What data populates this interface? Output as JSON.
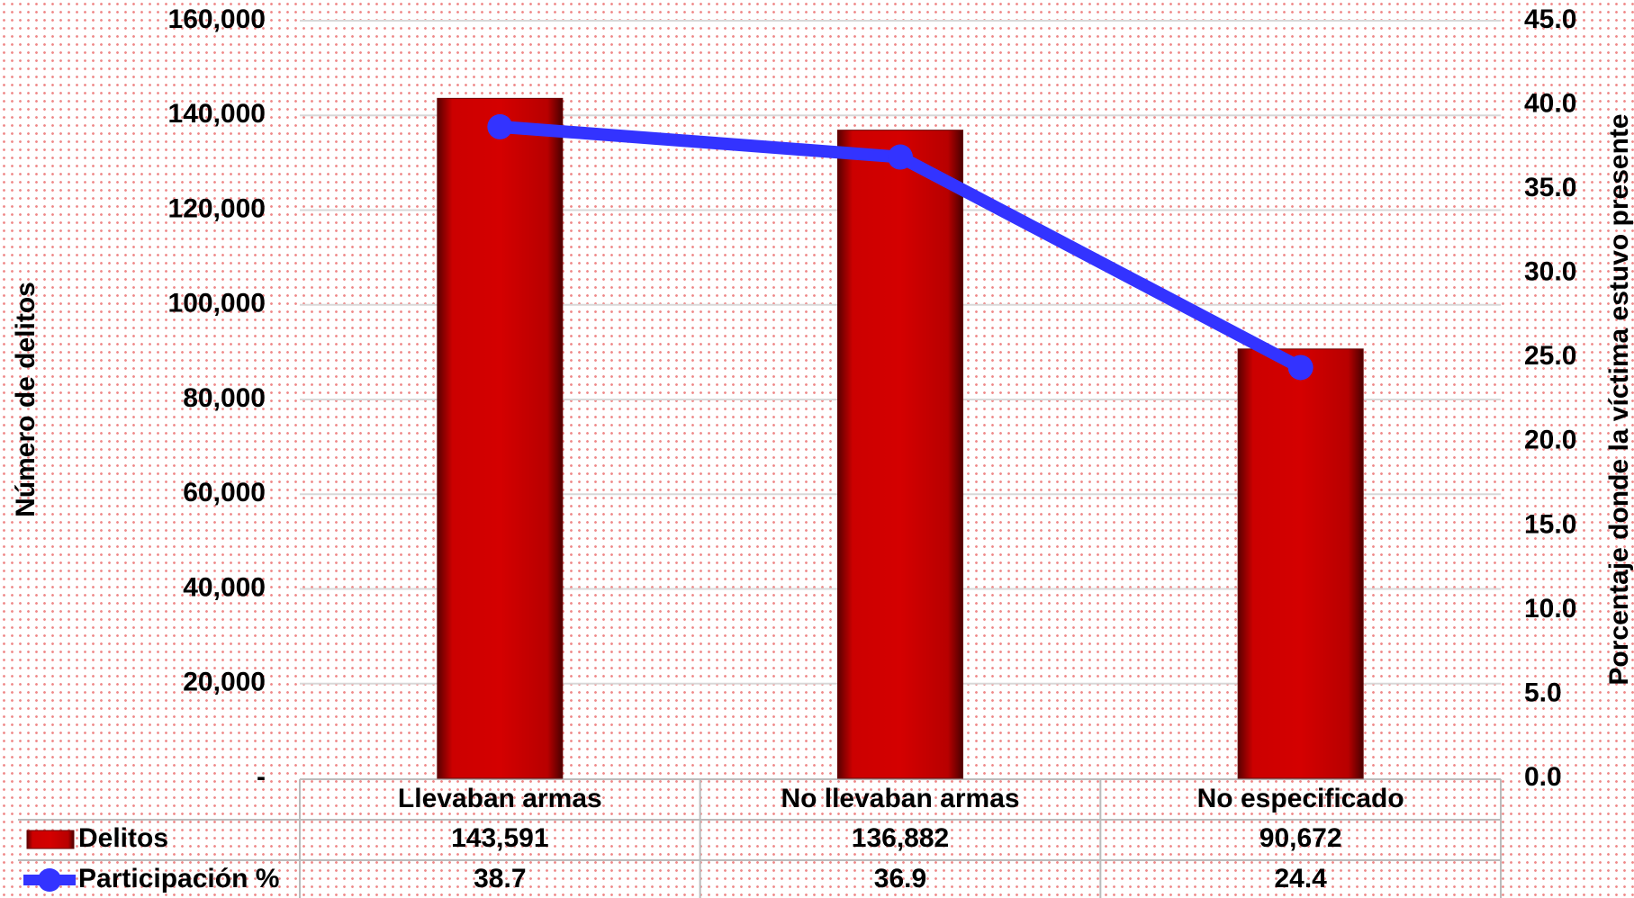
{
  "chart_data": {
    "type": "bar",
    "categories": [
      "Llevaban armas",
      "No llevaban armas",
      "No especificado"
    ],
    "series": [
      {
        "name": "Delitos",
        "type": "bar",
        "color": "#cc0000",
        "values": [
          143591,
          136882,
          90672
        ],
        "value_labels": [
          "143,591",
          "136,882",
          "90,672"
        ]
      },
      {
        "name": "Participación %",
        "type": "line",
        "axis": "y2",
        "color": "#3333ff",
        "values": [
          38.7,
          36.9,
          24.4
        ]
      }
    ],
    "ylabel": "Número de delitos",
    "y2label": "Porcentaje donde la víctima estuvo presente",
    "ylim": [
      0,
      160000
    ],
    "yticks": [
      {
        "value": 0,
        "label": "-"
      },
      {
        "value": 20000,
        "label": "20,000"
      },
      {
        "value": 40000,
        "label": "40,000"
      },
      {
        "value": 60000,
        "label": "60,000"
      },
      {
        "value": 80000,
        "label": "80,000"
      },
      {
        "value": 100000,
        "label": "100,000"
      },
      {
        "value": 120000,
        "label": "120,000"
      },
      {
        "value": 140000,
        "label": "140,000"
      },
      {
        "value": 160000,
        "label": "160,000"
      }
    ],
    "y2lim": [
      0,
      45
    ],
    "y2ticks": [
      {
        "value": 0,
        "label": "0.0"
      },
      {
        "value": 5,
        "label": "5.0"
      },
      {
        "value": 10,
        "label": "10.0"
      },
      {
        "value": 15,
        "label": "15.0"
      },
      {
        "value": 20,
        "label": "20.0"
      },
      {
        "value": 25,
        "label": "25.0"
      },
      {
        "value": 30,
        "label": "30.0"
      },
      {
        "value": 35,
        "label": "35.0"
      },
      {
        "value": 40,
        "label": "40.0"
      },
      {
        "value": 45,
        "label": "45.0"
      }
    ],
    "grid": true
  }
}
